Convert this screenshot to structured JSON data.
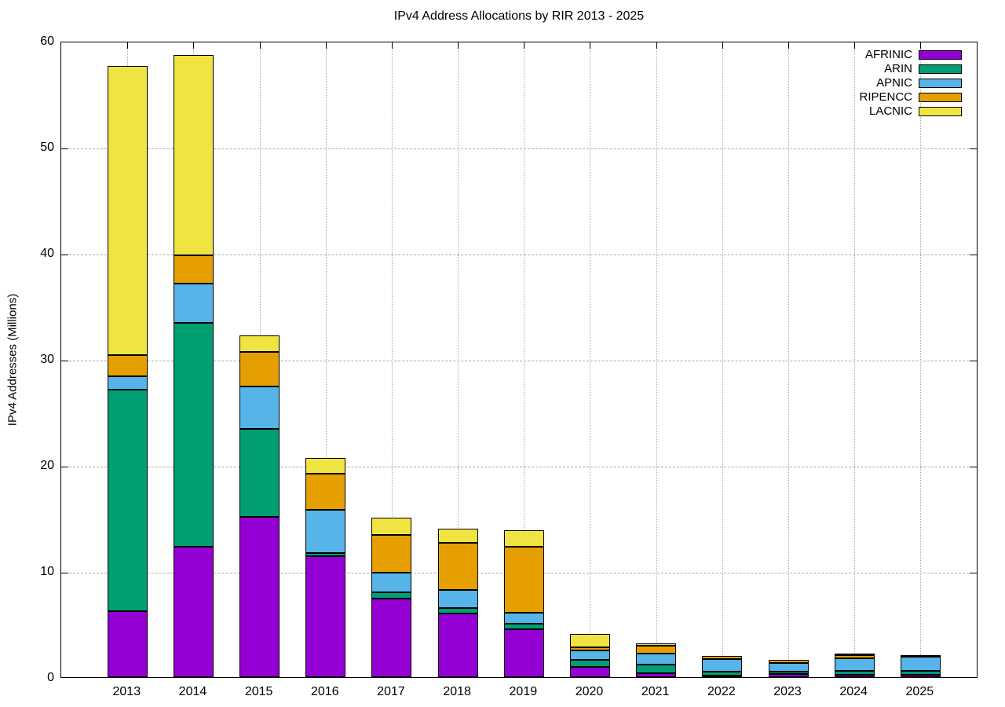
{
  "title": "IPv4 Address Allocations by RIR 2013 - 2025",
  "chart_data": {
    "type": "bar",
    "stacked": true,
    "title": "IPv4 Address Allocations by RIR 2013 - 2025",
    "xlabel": "",
    "ylabel": "IPv4 Addresses (Millions)",
    "ylim": [
      0,
      60
    ],
    "yticks": [
      0,
      10,
      20,
      30,
      40,
      50,
      60
    ],
    "grid": true,
    "legend_position": "top-right",
    "categories": [
      "2013",
      "2014",
      "2015",
      "2016",
      "2017",
      "2018",
      "2019",
      "2020",
      "2021",
      "2022",
      "2023",
      "2024",
      "2025"
    ],
    "series": [
      {
        "name": "AFRINIC",
        "color": "#9400D3",
        "values": [
          6.2,
          12.3,
          15.1,
          11.4,
          7.4,
          6.0,
          4.55,
          0.95,
          0.35,
          0.15,
          0.3,
          0.25,
          0.2
        ]
      },
      {
        "name": "ARIN",
        "color": "#009E73",
        "values": [
          20.9,
          21.1,
          8.3,
          0.3,
          0.6,
          0.5,
          0.5,
          0.65,
          0.8,
          0.35,
          0.25,
          0.35,
          0.4
        ]
      },
      {
        "name": "APNIC",
        "color": "#56B4E9",
        "values": [
          1.3,
          3.7,
          4.0,
          4.1,
          1.85,
          1.7,
          1.05,
          0.95,
          1.1,
          1.2,
          0.8,
          1.2,
          1.3
        ]
      },
      {
        "name": "RIPENCC",
        "color": "#E69F00",
        "values": [
          2.0,
          2.7,
          3.3,
          3.4,
          3.55,
          4.5,
          6.2,
          0.25,
          0.75,
          0.3,
          0.3,
          0.25,
          0.2
        ]
      },
      {
        "name": "LACNIC",
        "color": "#F0E442",
        "values": [
          27.2,
          18.9,
          1.5,
          1.5,
          1.65,
          1.3,
          1.55,
          1.3,
          0.15,
          0.0,
          0.0,
          0.05,
          0.0
        ]
      }
    ],
    "bar_totals": [
      57.6,
      58.7,
      32.2,
      20.7,
      15.05,
      14.0,
      13.85,
      4.1,
      3.15,
      2.0,
      1.65,
      2.1,
      2.1
    ]
  },
  "colors": {
    "background": "#FFFFFF",
    "border": "#000000",
    "grid": "#A8A8A8"
  }
}
